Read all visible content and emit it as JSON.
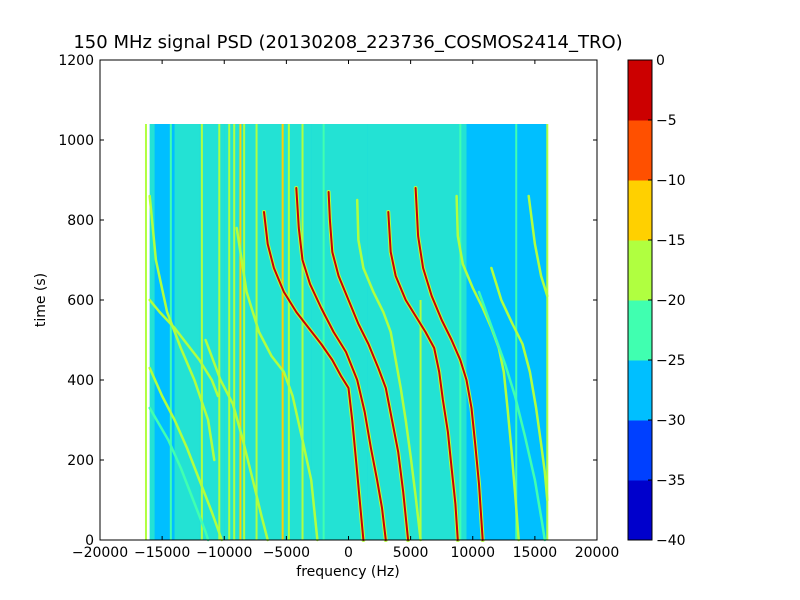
{
  "chart_data": {
    "type": "heatmap",
    "title": "150 MHz signal PSD (20130208_223736_COSMOS2414_TRO)",
    "xlabel": "frequency (Hz)",
    "ylabel": "time (s)",
    "xlim": [
      -20000,
      20000
    ],
    "ylim": [
      0,
      1200
    ],
    "xticks": [
      -20000,
      -15000,
      -10000,
      -5000,
      0,
      5000,
      10000,
      15000,
      20000
    ],
    "xtick_labels": [
      "−20000",
      "−15000",
      "−10000",
      "−5000",
      "0",
      "5000",
      "10000",
      "15000",
      "20000"
    ],
    "yticks": [
      0,
      200,
      400,
      600,
      800,
      1000,
      1200
    ],
    "ytick_labels": [
      "0",
      "200",
      "400",
      "600",
      "800",
      "1000",
      "1200"
    ],
    "data_extent": {
      "x": [
        -16000,
        16000
      ],
      "y": [
        0,
        1040
      ]
    },
    "colorbar": {
      "levels": [
        -40,
        -35,
        -30,
        -25,
        -20,
        -15,
        -10,
        -5,
        0
      ],
      "tick_labels": [
        "−40",
        "−35",
        "−30",
        "−25",
        "−20",
        "−15",
        "−10",
        "−5",
        "0"
      ],
      "colors": [
        "#0000cc",
        "#0040ff",
        "#00bfff",
        "#40ffb0",
        "#b0ff40",
        "#ffd000",
        "#ff5000",
        "#cc0000"
      ]
    },
    "background_level": -28,
    "background_bands": [
      {
        "x": [
          -16000,
          -15600
        ],
        "level": -22
      },
      {
        "x": [
          -15600,
          -14000
        ],
        "level": -28
      },
      {
        "x": [
          -14000,
          -12000
        ],
        "level": -24
      },
      {
        "x": [
          -12000,
          -10000
        ],
        "level": -22
      },
      {
        "x": [
          -10000,
          -3000
        ],
        "level": -22
      },
      {
        "x": [
          -3000,
          1500
        ],
        "level": -24
      },
      {
        "x": [
          1500,
          9500
        ],
        "level": -24
      },
      {
        "x": [
          9500,
          16000
        ],
        "level": -28
      }
    ],
    "vertical_lines": [
      {
        "x": -16300,
        "level": -20,
        "y": [
          0,
          1040
        ]
      },
      {
        "x": -14300,
        "level": -22,
        "y": [
          0,
          1040
        ]
      },
      {
        "x": -11800,
        "level": -20,
        "y": [
          0,
          1040
        ]
      },
      {
        "x": -10400,
        "level": -20,
        "y": [
          0,
          1040
        ]
      },
      {
        "x": -9600,
        "level": -18,
        "y": [
          0,
          1040
        ]
      },
      {
        "x": -9200,
        "level": -17,
        "y": [
          0,
          1040
        ]
      },
      {
        "x": -8700,
        "level": -14,
        "y": [
          0,
          1040
        ]
      },
      {
        "x": -8400,
        "level": -18,
        "y": [
          0,
          1040
        ]
      },
      {
        "x": -7400,
        "level": -20,
        "y": [
          0,
          1040
        ]
      },
      {
        "x": -5300,
        "level": -14,
        "y": [
          0,
          1040
        ]
      },
      {
        "x": -4800,
        "level": -20,
        "y": [
          0,
          1040
        ]
      },
      {
        "x": -3700,
        "level": -20,
        "y": [
          0,
          1040
        ]
      },
      {
        "x": -2000,
        "level": -22,
        "y": [
          0,
          1040
        ]
      },
      {
        "x": 5800,
        "level": -20,
        "y": [
          0,
          600
        ]
      },
      {
        "x": 9000,
        "level": -22,
        "y": [
          0,
          1040
        ]
      },
      {
        "x": 13500,
        "level": -22,
        "y": [
          0,
          1040
        ]
      },
      {
        "x": 16000,
        "level": -20,
        "y": [
          0,
          1040
        ]
      }
    ],
    "tracks": [
      {
        "level": -20,
        "points": [
          [
            -16000,
            860
          ],
          [
            -15500,
            700
          ],
          [
            -14600,
            570
          ],
          [
            -13500,
            480
          ],
          [
            -12400,
            400
          ],
          [
            -11300,
            300
          ],
          [
            -10800,
            200
          ]
        ]
      },
      {
        "level": -18,
        "points": [
          [
            -16000,
            600
          ],
          [
            -15200,
            570
          ],
          [
            -14000,
            530
          ],
          [
            -13000,
            490
          ],
          [
            -12000,
            450
          ],
          [
            -11000,
            400
          ],
          [
            -10500,
            360
          ]
        ]
      },
      {
        "level": -20,
        "points": [
          [
            -16000,
            430
          ],
          [
            -15000,
            360
          ],
          [
            -14000,
            300
          ],
          [
            -13000,
            230
          ],
          [
            -12000,
            150
          ],
          [
            -11000,
            70
          ],
          [
            -10200,
            0
          ]
        ]
      },
      {
        "level": -21,
        "points": [
          [
            -16000,
            330
          ],
          [
            -14500,
            250
          ],
          [
            -13500,
            180
          ],
          [
            -12500,
            100
          ],
          [
            -11500,
            20
          ],
          [
            -11300,
            0
          ]
        ]
      },
      {
        "level": -20,
        "points": [
          [
            -11500,
            500
          ],
          [
            -10300,
            400
          ],
          [
            -9300,
            340
          ],
          [
            -8500,
            250
          ],
          [
            -7700,
            150
          ],
          [
            -7000,
            60
          ],
          [
            -6500,
            0
          ]
        ]
      },
      {
        "level": -20,
        "points": [
          [
            -9000,
            780
          ],
          [
            -8200,
            620
          ],
          [
            -7200,
            520
          ],
          [
            -6200,
            460
          ],
          [
            -5200,
            420
          ],
          [
            -4500,
            360
          ],
          [
            -3700,
            250
          ],
          [
            -3000,
            150
          ],
          [
            -2500,
            0
          ]
        ]
      },
      {
        "level": -5,
        "points": [
          [
            -6800,
            820
          ],
          [
            -6500,
            740
          ],
          [
            -6000,
            680
          ],
          [
            -5200,
            620
          ],
          [
            -4200,
            570
          ],
          [
            -3200,
            530
          ],
          [
            -2200,
            490
          ],
          [
            -1300,
            450
          ],
          [
            -600,
            410
          ],
          [
            0,
            380
          ],
          [
            300,
            300
          ],
          [
            600,
            200
          ],
          [
            900,
            100
          ],
          [
            1200,
            0
          ]
        ]
      },
      {
        "level": -5,
        "points": [
          [
            -4200,
            880
          ],
          [
            -4000,
            780
          ],
          [
            -3700,
            700
          ],
          [
            -3100,
            640
          ],
          [
            -2200,
            580
          ],
          [
            -1200,
            520
          ],
          [
            -200,
            470
          ],
          [
            700,
            400
          ],
          [
            1300,
            320
          ],
          [
            1800,
            230
          ],
          [
            2300,
            150
          ],
          [
            2700,
            80
          ],
          [
            3000,
            0
          ]
        ]
      },
      {
        "level": -5,
        "points": [
          [
            -1600,
            870
          ],
          [
            -1500,
            800
          ],
          [
            -1300,
            720
          ],
          [
            -800,
            660
          ],
          [
            0,
            600
          ],
          [
            800,
            540
          ],
          [
            1600,
            490
          ],
          [
            2400,
            430
          ],
          [
            3000,
            380
          ],
          [
            3500,
            300
          ],
          [
            4000,
            220
          ],
          [
            4400,
            120
          ],
          [
            4800,
            0
          ]
        ]
      },
      {
        "level": -18,
        "points": [
          [
            700,
            850
          ],
          [
            800,
            750
          ],
          [
            1200,
            680
          ],
          [
            2000,
            620
          ],
          [
            2800,
            570
          ],
          [
            3400,
            520
          ],
          [
            3800,
            450
          ],
          [
            4200,
            380
          ],
          [
            4600,
            300
          ],
          [
            5000,
            210
          ],
          [
            5400,
            110
          ],
          [
            5800,
            0
          ]
        ]
      },
      {
        "level": -5,
        "points": [
          [
            3200,
            820
          ],
          [
            3400,
            720
          ],
          [
            3800,
            660
          ],
          [
            4600,
            600
          ],
          [
            5400,
            560
          ],
          [
            6200,
            520
          ],
          [
            6900,
            480
          ],
          [
            7300,
            420
          ],
          [
            7600,
            350
          ],
          [
            8000,
            270
          ],
          [
            8300,
            180
          ],
          [
            8600,
            90
          ],
          [
            8800,
            0
          ]
        ]
      },
      {
        "level": -5,
        "points": [
          [
            5400,
            880
          ],
          [
            5600,
            760
          ],
          [
            6000,
            680
          ],
          [
            6700,
            610
          ],
          [
            7500,
            550
          ],
          [
            8300,
            500
          ],
          [
            9000,
            450
          ],
          [
            9500,
            400
          ],
          [
            9900,
            330
          ],
          [
            10200,
            240
          ],
          [
            10500,
            140
          ],
          [
            10800,
            0
          ]
        ]
      },
      {
        "level": -18,
        "points": [
          [
            8700,
            860
          ],
          [
            8800,
            760
          ],
          [
            9200,
            690
          ],
          [
            10000,
            630
          ],
          [
            10800,
            580
          ],
          [
            11500,
            530
          ],
          [
            12100,
            480
          ],
          [
            12500,
            420
          ],
          [
            12800,
            330
          ],
          [
            13100,
            230
          ],
          [
            13400,
            120
          ],
          [
            13700,
            0
          ]
        ]
      },
      {
        "level": -20,
        "points": [
          [
            11500,
            680
          ],
          [
            12300,
            600
          ],
          [
            13200,
            540
          ],
          [
            14000,
            490
          ],
          [
            14600,
            420
          ],
          [
            15100,
            330
          ],
          [
            15500,
            240
          ],
          [
            15800,
            170
          ],
          [
            16000,
            100
          ]
        ]
      },
      {
        "level": -20,
        "points": [
          [
            14500,
            860
          ],
          [
            15000,
            740
          ],
          [
            15500,
            660
          ],
          [
            16000,
            610
          ]
        ]
      },
      {
        "level": -22,
        "points": [
          [
            10500,
            620
          ],
          [
            11200,
            560
          ],
          [
            11900,
            500
          ],
          [
            12600,
            440
          ],
          [
            13400,
            360
          ],
          [
            14200,
            260
          ],
          [
            15000,
            150
          ],
          [
            15600,
            40
          ],
          [
            15800,
            0
          ]
        ]
      }
    ]
  }
}
